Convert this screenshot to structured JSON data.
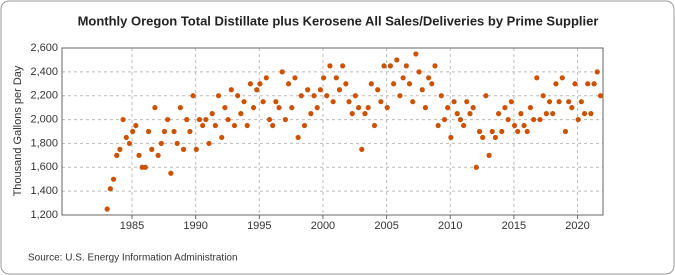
{
  "chart_data": {
    "type": "scatter",
    "title": "Monthly Oregon Total Distillate plus Kerosene All Sales/Deliveries by Prime Supplier",
    "y_label": "Thousand Gallons per Day",
    "source": "Source: U.S. Energy Information Administration",
    "color": "#cc5200",
    "grid": true,
    "xlim": [
      1979.5,
      2022
    ],
    "xticks": [
      1985,
      1990,
      1995,
      2000,
      2005,
      2010,
      2015,
      2020
    ],
    "ylim": [
      1200,
      2600
    ],
    "yticks": [
      {
        "value": 1200,
        "label": "1,200"
      },
      {
        "value": 1400,
        "label": "1,400"
      },
      {
        "value": 1600,
        "label": "1,600"
      },
      {
        "value": 1800,
        "label": "1,800"
      },
      {
        "value": 2000,
        "label": "2,000"
      },
      {
        "value": 2200,
        "label": "2,200"
      },
      {
        "value": 2400,
        "label": "2,400"
      },
      {
        "value": 2600,
        "label": "2,600"
      }
    ],
    "x": [
      1983.05,
      1983.3,
      1983.55,
      1983.8,
      1984.05,
      1984.3,
      1984.55,
      1984.8,
      1985.05,
      1985.3,
      1985.55,
      1985.8,
      1986.05,
      1986.3,
      1986.55,
      1986.8,
      1987.05,
      1987.3,
      1987.55,
      1987.8,
      1988.05,
      1988.3,
      1988.55,
      1988.8,
      1989.05,
      1989.3,
      1989.55,
      1989.8,
      1990.05,
      1990.3,
      1990.55,
      1990.8,
      1991.05,
      1991.3,
      1991.55,
      1991.8,
      1992.05,
      1992.3,
      1992.55,
      1992.8,
      1993.05,
      1993.3,
      1993.55,
      1993.8,
      1994.05,
      1994.3,
      1994.55,
      1994.8,
      1995.05,
      1995.3,
      1995.55,
      1995.8,
      1996.05,
      1996.3,
      1996.55,
      1996.8,
      1997.05,
      1997.3,
      1997.55,
      1997.8,
      1998.05,
      1998.3,
      1998.55,
      1998.8,
      1999.05,
      1999.3,
      1999.55,
      1999.8,
      2000.05,
      2000.3,
      2000.55,
      2000.8,
      2001.05,
      2001.3,
      2001.55,
      2001.8,
      2002.05,
      2002.3,
      2002.55,
      2002.8,
      2003.05,
      2003.3,
      2003.55,
      2003.8,
      2004.05,
      2004.3,
      2004.55,
      2004.8,
      2005.05,
      2005.3,
      2005.55,
      2005.8,
      2006.05,
      2006.3,
      2006.55,
      2006.8,
      2007.05,
      2007.3,
      2007.55,
      2007.8,
      2008.05,
      2008.3,
      2008.55,
      2008.8,
      2009.05,
      2009.3,
      2009.55,
      2009.8,
      2010.05,
      2010.3,
      2010.55,
      2010.8,
      2011.05,
      2011.3,
      2011.55,
      2011.8,
      2012.05,
      2012.3,
      2012.55,
      2012.8,
      2013.05,
      2013.3,
      2013.55,
      2013.8,
      2014.05,
      2014.3,
      2014.55,
      2014.8,
      2015.05,
      2015.3,
      2015.55,
      2015.8,
      2016.05,
      2016.3,
      2016.55,
      2016.8,
      2017.05,
      2017.3,
      2017.55,
      2017.8,
      2018.05,
      2018.3,
      2018.55,
      2018.8,
      2019.05,
      2019.3,
      2019.55,
      2019.8,
      2020.05,
      2020.3,
      2020.55,
      2020.8,
      2021.05,
      2021.3,
      2021.55,
      2021.8
    ],
    "values": [
      1250,
      1420,
      1500,
      1700,
      1750,
      2000,
      1850,
      1800,
      1900,
      1950,
      1700,
      1600,
      1600,
      1900,
      1750,
      2100,
      1700,
      1800,
      1900,
      2000,
      1550,
      1900,
      1800,
      2100,
      1750,
      2000,
      1900,
      2200,
      1750,
      2000,
      1950,
      2000,
      1800,
      2050,
      1950,
      2200,
      1850,
      2100,
      2000,
      2250,
      1950,
      2200,
      2050,
      2150,
      1950,
      2300,
      2100,
      2250,
      2300,
      2150,
      2350,
      2000,
      1950,
      2150,
      2100,
      2400,
      2000,
      2300,
      2100,
      2350,
      1850,
      2200,
      1950,
      2250,
      2050,
      2200,
      2100,
      2250,
      2350,
      2200,
      2450,
      2150,
      2350,
      2250,
      2450,
      2300,
      2150,
      2050,
      2200,
      2100,
      1750,
      2050,
      2100,
      2300,
      1950,
      2250,
      2150,
      2450,
      2100,
      2450,
      2300,
      2500,
      2200,
      2350,
      2450,
      2300,
      2150,
      2550,
      2400,
      2250,
      2100,
      2350,
      2300,
      2450,
      1950,
      2200,
      2000,
      2100,
      1850,
      2150,
      2050,
      2000,
      1950,
      2150,
      2050,
      2100,
      1600,
      1900,
      1850,
      2200,
      1700,
      1900,
      1850,
      2050,
      1900,
      2100,
      2000,
      2150,
      1950,
      1900,
      2050,
      1950,
      1900,
      2100,
      2000,
      2350,
      2000,
      2200,
      2050,
      2150,
      2050,
      2300,
      2150,
      2350,
      1900,
      2150,
      2100,
      2300,
      2000,
      2150,
      2050,
      2300,
      2050,
      2300,
      2400,
      2200
    ]
  }
}
